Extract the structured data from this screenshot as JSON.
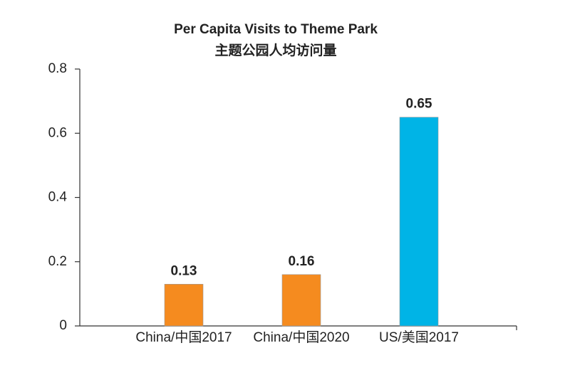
{
  "chart_data": {
    "type": "bar",
    "title": "Per Capita Visits to Theme Park",
    "subtitle": "主题公园人均访问量",
    "categories": [
      "China/中国2017",
      "China/中国2020",
      "US/美国2017"
    ],
    "values": [
      0.13,
      0.16,
      0.65
    ],
    "colors": [
      "#f58b1f",
      "#f58b1f",
      "#00b4e6"
    ],
    "ylim": [
      0,
      0.8
    ],
    "yticks": [
      0,
      0.2,
      0.4,
      0.6,
      0.8
    ],
    "grid": false
  }
}
